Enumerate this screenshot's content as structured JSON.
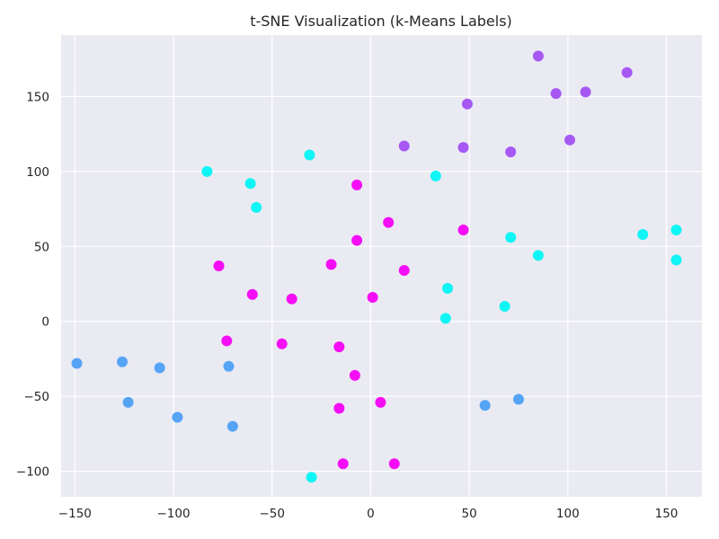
{
  "chart_data": {
    "type": "scatter",
    "title": "t-SNE Visualization (k-Means Labels)",
    "xlabel": "",
    "ylabel": "",
    "xlim": [
      -157,
      168
    ],
    "ylim": [
      -117,
      191
    ],
    "xticks": [
      -150,
      -100,
      -50,
      0,
      50,
      100,
      150
    ],
    "yticks": [
      -100,
      -50,
      0,
      50,
      100,
      150
    ],
    "grid": true,
    "legend": "none",
    "colors": {
      "background": "#eaeaf2",
      "grid": "#ffffff",
      "cluster_blue": "#55a4f6",
      "cluster_magenta": "#f50ef5",
      "cluster_cyan": "#10f5f5",
      "cluster_purple": "#a658f3"
    },
    "series": [
      {
        "color": "#55a4f6",
        "points": [
          {
            "x": -149,
            "y": -28
          },
          {
            "x": -126,
            "y": -27
          },
          {
            "x": -107,
            "y": -31
          },
          {
            "x": -123,
            "y": -54
          },
          {
            "x": -98,
            "y": -64
          },
          {
            "x": -72,
            "y": -30
          },
          {
            "x": -70,
            "y": -70
          },
          {
            "x": 58,
            "y": -56
          },
          {
            "x": 75,
            "y": -52
          }
        ]
      },
      {
        "color": "#f50ef5",
        "points": [
          {
            "x": -7,
            "y": 91
          },
          {
            "x": 9,
            "y": 66
          },
          {
            "x": -7,
            "y": 54
          },
          {
            "x": 47,
            "y": 61
          },
          {
            "x": -77,
            "y": 37
          },
          {
            "x": -20,
            "y": 38
          },
          {
            "x": 17,
            "y": 34
          },
          {
            "x": -60,
            "y": 18
          },
          {
            "x": -40,
            "y": 15
          },
          {
            "x": 1,
            "y": 16
          },
          {
            "x": -73,
            "y": -13
          },
          {
            "x": -45,
            "y": -15
          },
          {
            "x": -16,
            "y": -17
          },
          {
            "x": -8,
            "y": -36
          },
          {
            "x": 5,
            "y": -54
          },
          {
            "x": -16,
            "y": -58
          },
          {
            "x": -14,
            "y": -95
          },
          {
            "x": 12,
            "y": -95
          }
        ]
      },
      {
        "color": "#10f5f5",
        "points": [
          {
            "x": -83,
            "y": 100
          },
          {
            "x": -31,
            "y": 111
          },
          {
            "x": -61,
            "y": 92
          },
          {
            "x": -58,
            "y": 76
          },
          {
            "x": 33,
            "y": 97
          },
          {
            "x": 71,
            "y": 56
          },
          {
            "x": 85,
            "y": 44
          },
          {
            "x": 138,
            "y": 58
          },
          {
            "x": 155,
            "y": 61
          },
          {
            "x": 155,
            "y": 41
          },
          {
            "x": 39,
            "y": 22
          },
          {
            "x": 38,
            "y": 2
          },
          {
            "x": 68,
            "y": 10
          },
          {
            "x": -30,
            "y": -104
          }
        ]
      },
      {
        "color": "#a658f3",
        "points": [
          {
            "x": 85,
            "y": 177
          },
          {
            "x": 130,
            "y": 166
          },
          {
            "x": 94,
            "y": 152
          },
          {
            "x": 109,
            "y": 153
          },
          {
            "x": 49,
            "y": 145
          },
          {
            "x": 101,
            "y": 121
          },
          {
            "x": 17,
            "y": 117
          },
          {
            "x": 47,
            "y": 116
          },
          {
            "x": 71,
            "y": 113
          }
        ]
      }
    ]
  }
}
